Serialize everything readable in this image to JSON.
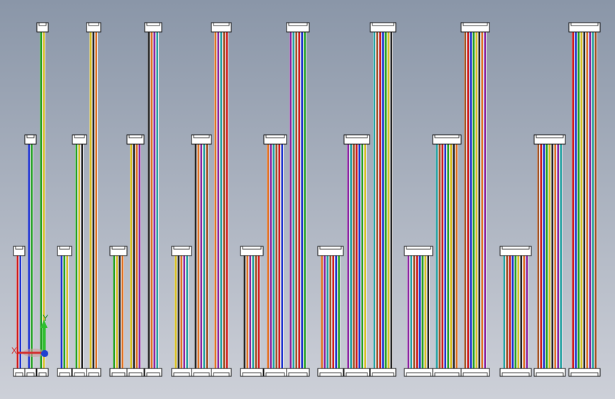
{
  "triad": {
    "x_label": "X",
    "y_label": "Y"
  }
}
